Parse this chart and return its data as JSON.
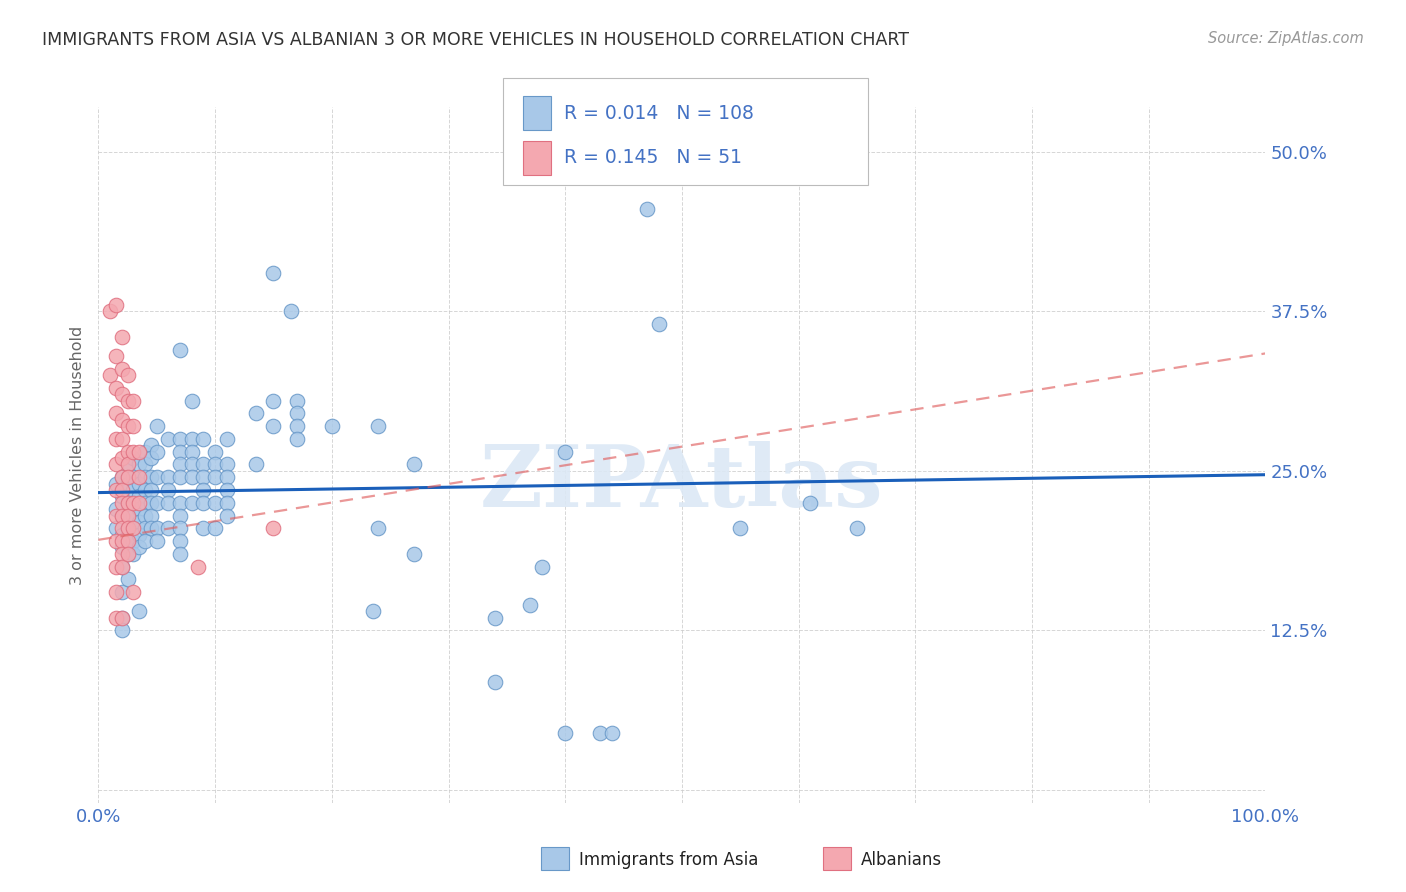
{
  "title": "IMMIGRANTS FROM ASIA VS ALBANIAN 3 OR MORE VEHICLES IN HOUSEHOLD CORRELATION CHART",
  "source": "Source: ZipAtlas.com",
  "ylabel": "3 or more Vehicles in Household",
  "legend_blue_r": "0.014",
  "legend_blue_n": "108",
  "legend_pink_r": "0.145",
  "legend_pink_n": "51",
  "legend_blue_label": "Immigrants from Asia",
  "legend_pink_label": "Albanians",
  "blue_color": "#a8c8e8",
  "pink_color": "#f4a8b0",
  "blue_edge_color": "#6898c8",
  "pink_edge_color": "#e07080",
  "trendline_blue_color": "#1a5fba",
  "trendline_pink_color": "#e06060",
  "tick_color": "#4472c4",
  "title_color": "#333333",
  "source_color": "#999999",
  "grid_color": "#cccccc",
  "background_color": "#ffffff",
  "watermark_color": "#dce8f5",
  "blue_scatter": [
    [
      0.015,
      0.24
    ],
    [
      0.015,
      0.22
    ],
    [
      0.015,
      0.205
    ],
    [
      0.02,
      0.245
    ],
    [
      0.02,
      0.23
    ],
    [
      0.02,
      0.215
    ],
    [
      0.02,
      0.2
    ],
    [
      0.02,
      0.19
    ],
    [
      0.02,
      0.175
    ],
    [
      0.02,
      0.155
    ],
    [
      0.02,
      0.135
    ],
    [
      0.02,
      0.125
    ],
    [
      0.025,
      0.255
    ],
    [
      0.025,
      0.24
    ],
    [
      0.025,
      0.225
    ],
    [
      0.025,
      0.215
    ],
    [
      0.025,
      0.205
    ],
    [
      0.025,
      0.195
    ],
    [
      0.025,
      0.185
    ],
    [
      0.025,
      0.165
    ],
    [
      0.03,
      0.26
    ],
    [
      0.03,
      0.245
    ],
    [
      0.03,
      0.235
    ],
    [
      0.03,
      0.225
    ],
    [
      0.03,
      0.215
    ],
    [
      0.03,
      0.205
    ],
    [
      0.03,
      0.195
    ],
    [
      0.03,
      0.185
    ],
    [
      0.035,
      0.255
    ],
    [
      0.035,
      0.24
    ],
    [
      0.035,
      0.23
    ],
    [
      0.035,
      0.22
    ],
    [
      0.035,
      0.21
    ],
    [
      0.035,
      0.2
    ],
    [
      0.035,
      0.19
    ],
    [
      0.035,
      0.14
    ],
    [
      0.04,
      0.265
    ],
    [
      0.04,
      0.255
    ],
    [
      0.04,
      0.245
    ],
    [
      0.04,
      0.235
    ],
    [
      0.04,
      0.225
    ],
    [
      0.04,
      0.215
    ],
    [
      0.04,
      0.205
    ],
    [
      0.04,
      0.195
    ],
    [
      0.045,
      0.27
    ],
    [
      0.045,
      0.26
    ],
    [
      0.045,
      0.245
    ],
    [
      0.045,
      0.235
    ],
    [
      0.045,
      0.225
    ],
    [
      0.045,
      0.215
    ],
    [
      0.045,
      0.205
    ],
    [
      0.05,
      0.285
    ],
    [
      0.05,
      0.265
    ],
    [
      0.05,
      0.245
    ],
    [
      0.05,
      0.225
    ],
    [
      0.05,
      0.205
    ],
    [
      0.05,
      0.195
    ],
    [
      0.06,
      0.275
    ],
    [
      0.06,
      0.245
    ],
    [
      0.06,
      0.235
    ],
    [
      0.06,
      0.225
    ],
    [
      0.06,
      0.205
    ],
    [
      0.07,
      0.345
    ],
    [
      0.07,
      0.275
    ],
    [
      0.07,
      0.265
    ],
    [
      0.07,
      0.255
    ],
    [
      0.07,
      0.245
    ],
    [
      0.07,
      0.225
    ],
    [
      0.07,
      0.215
    ],
    [
      0.07,
      0.205
    ],
    [
      0.07,
      0.195
    ],
    [
      0.07,
      0.185
    ],
    [
      0.08,
      0.305
    ],
    [
      0.08,
      0.275
    ],
    [
      0.08,
      0.265
    ],
    [
      0.08,
      0.255
    ],
    [
      0.08,
      0.245
    ],
    [
      0.08,
      0.225
    ],
    [
      0.09,
      0.275
    ],
    [
      0.09,
      0.255
    ],
    [
      0.09,
      0.245
    ],
    [
      0.09,
      0.235
    ],
    [
      0.09,
      0.225
    ],
    [
      0.09,
      0.205
    ],
    [
      0.1,
      0.265
    ],
    [
      0.1,
      0.255
    ],
    [
      0.1,
      0.245
    ],
    [
      0.1,
      0.225
    ],
    [
      0.1,
      0.205
    ],
    [
      0.11,
      0.275
    ],
    [
      0.11,
      0.255
    ],
    [
      0.11,
      0.245
    ],
    [
      0.11,
      0.235
    ],
    [
      0.11,
      0.225
    ],
    [
      0.11,
      0.215
    ],
    [
      0.135,
      0.295
    ],
    [
      0.135,
      0.255
    ],
    [
      0.15,
      0.405
    ],
    [
      0.15,
      0.305
    ],
    [
      0.15,
      0.285
    ],
    [
      0.165,
      0.375
    ],
    [
      0.17,
      0.305
    ],
    [
      0.17,
      0.295
    ],
    [
      0.17,
      0.285
    ],
    [
      0.17,
      0.275
    ],
    [
      0.2,
      0.285
    ],
    [
      0.235,
      0.14
    ],
    [
      0.24,
      0.285
    ],
    [
      0.24,
      0.205
    ],
    [
      0.27,
      0.255
    ],
    [
      0.27,
      0.185
    ],
    [
      0.34,
      0.135
    ],
    [
      0.34,
      0.085
    ],
    [
      0.37,
      0.145
    ],
    [
      0.38,
      0.175
    ],
    [
      0.4,
      0.265
    ],
    [
      0.4,
      0.045
    ],
    [
      0.43,
      0.045
    ],
    [
      0.44,
      0.045
    ],
    [
      0.47,
      0.455
    ],
    [
      0.48,
      0.365
    ],
    [
      0.55,
      0.205
    ],
    [
      0.61,
      0.225
    ],
    [
      0.65,
      0.205
    ]
  ],
  "pink_scatter": [
    [
      0.01,
      0.375
    ],
    [
      0.01,
      0.325
    ],
    [
      0.015,
      0.38
    ],
    [
      0.015,
      0.34
    ],
    [
      0.015,
      0.315
    ],
    [
      0.015,
      0.295
    ],
    [
      0.015,
      0.275
    ],
    [
      0.015,
      0.255
    ],
    [
      0.015,
      0.235
    ],
    [
      0.015,
      0.215
    ],
    [
      0.015,
      0.195
    ],
    [
      0.015,
      0.175
    ],
    [
      0.015,
      0.155
    ],
    [
      0.015,
      0.135
    ],
    [
      0.02,
      0.355
    ],
    [
      0.02,
      0.33
    ],
    [
      0.02,
      0.31
    ],
    [
      0.02,
      0.29
    ],
    [
      0.02,
      0.275
    ],
    [
      0.02,
      0.26
    ],
    [
      0.02,
      0.245
    ],
    [
      0.02,
      0.235
    ],
    [
      0.02,
      0.225
    ],
    [
      0.02,
      0.215
    ],
    [
      0.02,
      0.205
    ],
    [
      0.02,
      0.195
    ],
    [
      0.02,
      0.185
    ],
    [
      0.02,
      0.175
    ],
    [
      0.02,
      0.135
    ],
    [
      0.025,
      0.325
    ],
    [
      0.025,
      0.305
    ],
    [
      0.025,
      0.285
    ],
    [
      0.025,
      0.265
    ],
    [
      0.025,
      0.255
    ],
    [
      0.025,
      0.245
    ],
    [
      0.025,
      0.225
    ],
    [
      0.025,
      0.215
    ],
    [
      0.025,
      0.205
    ],
    [
      0.025,
      0.195
    ],
    [
      0.025,
      0.185
    ],
    [
      0.03,
      0.305
    ],
    [
      0.03,
      0.285
    ],
    [
      0.03,
      0.265
    ],
    [
      0.03,
      0.225
    ],
    [
      0.03,
      0.205
    ],
    [
      0.03,
      0.155
    ],
    [
      0.035,
      0.265
    ],
    [
      0.035,
      0.245
    ],
    [
      0.035,
      0.225
    ],
    [
      0.085,
      0.175
    ],
    [
      0.15,
      0.205
    ]
  ],
  "blue_trendline_x": [
    0.0,
    1.0
  ],
  "blue_trendline_y": [
    0.233,
    0.247
  ],
  "pink_trendline_x": [
    0.0,
    1.0
  ],
  "pink_trendline_y": [
    0.196,
    0.342
  ],
  "xlim": [
    0.0,
    1.0
  ],
  "ylim": [
    -0.01,
    0.535
  ],
  "yticks": [
    0.0,
    0.125,
    0.25,
    0.375,
    0.5
  ],
  "ytick_labels": [
    "",
    "12.5%",
    "25.0%",
    "37.5%",
    "50.0%"
  ]
}
